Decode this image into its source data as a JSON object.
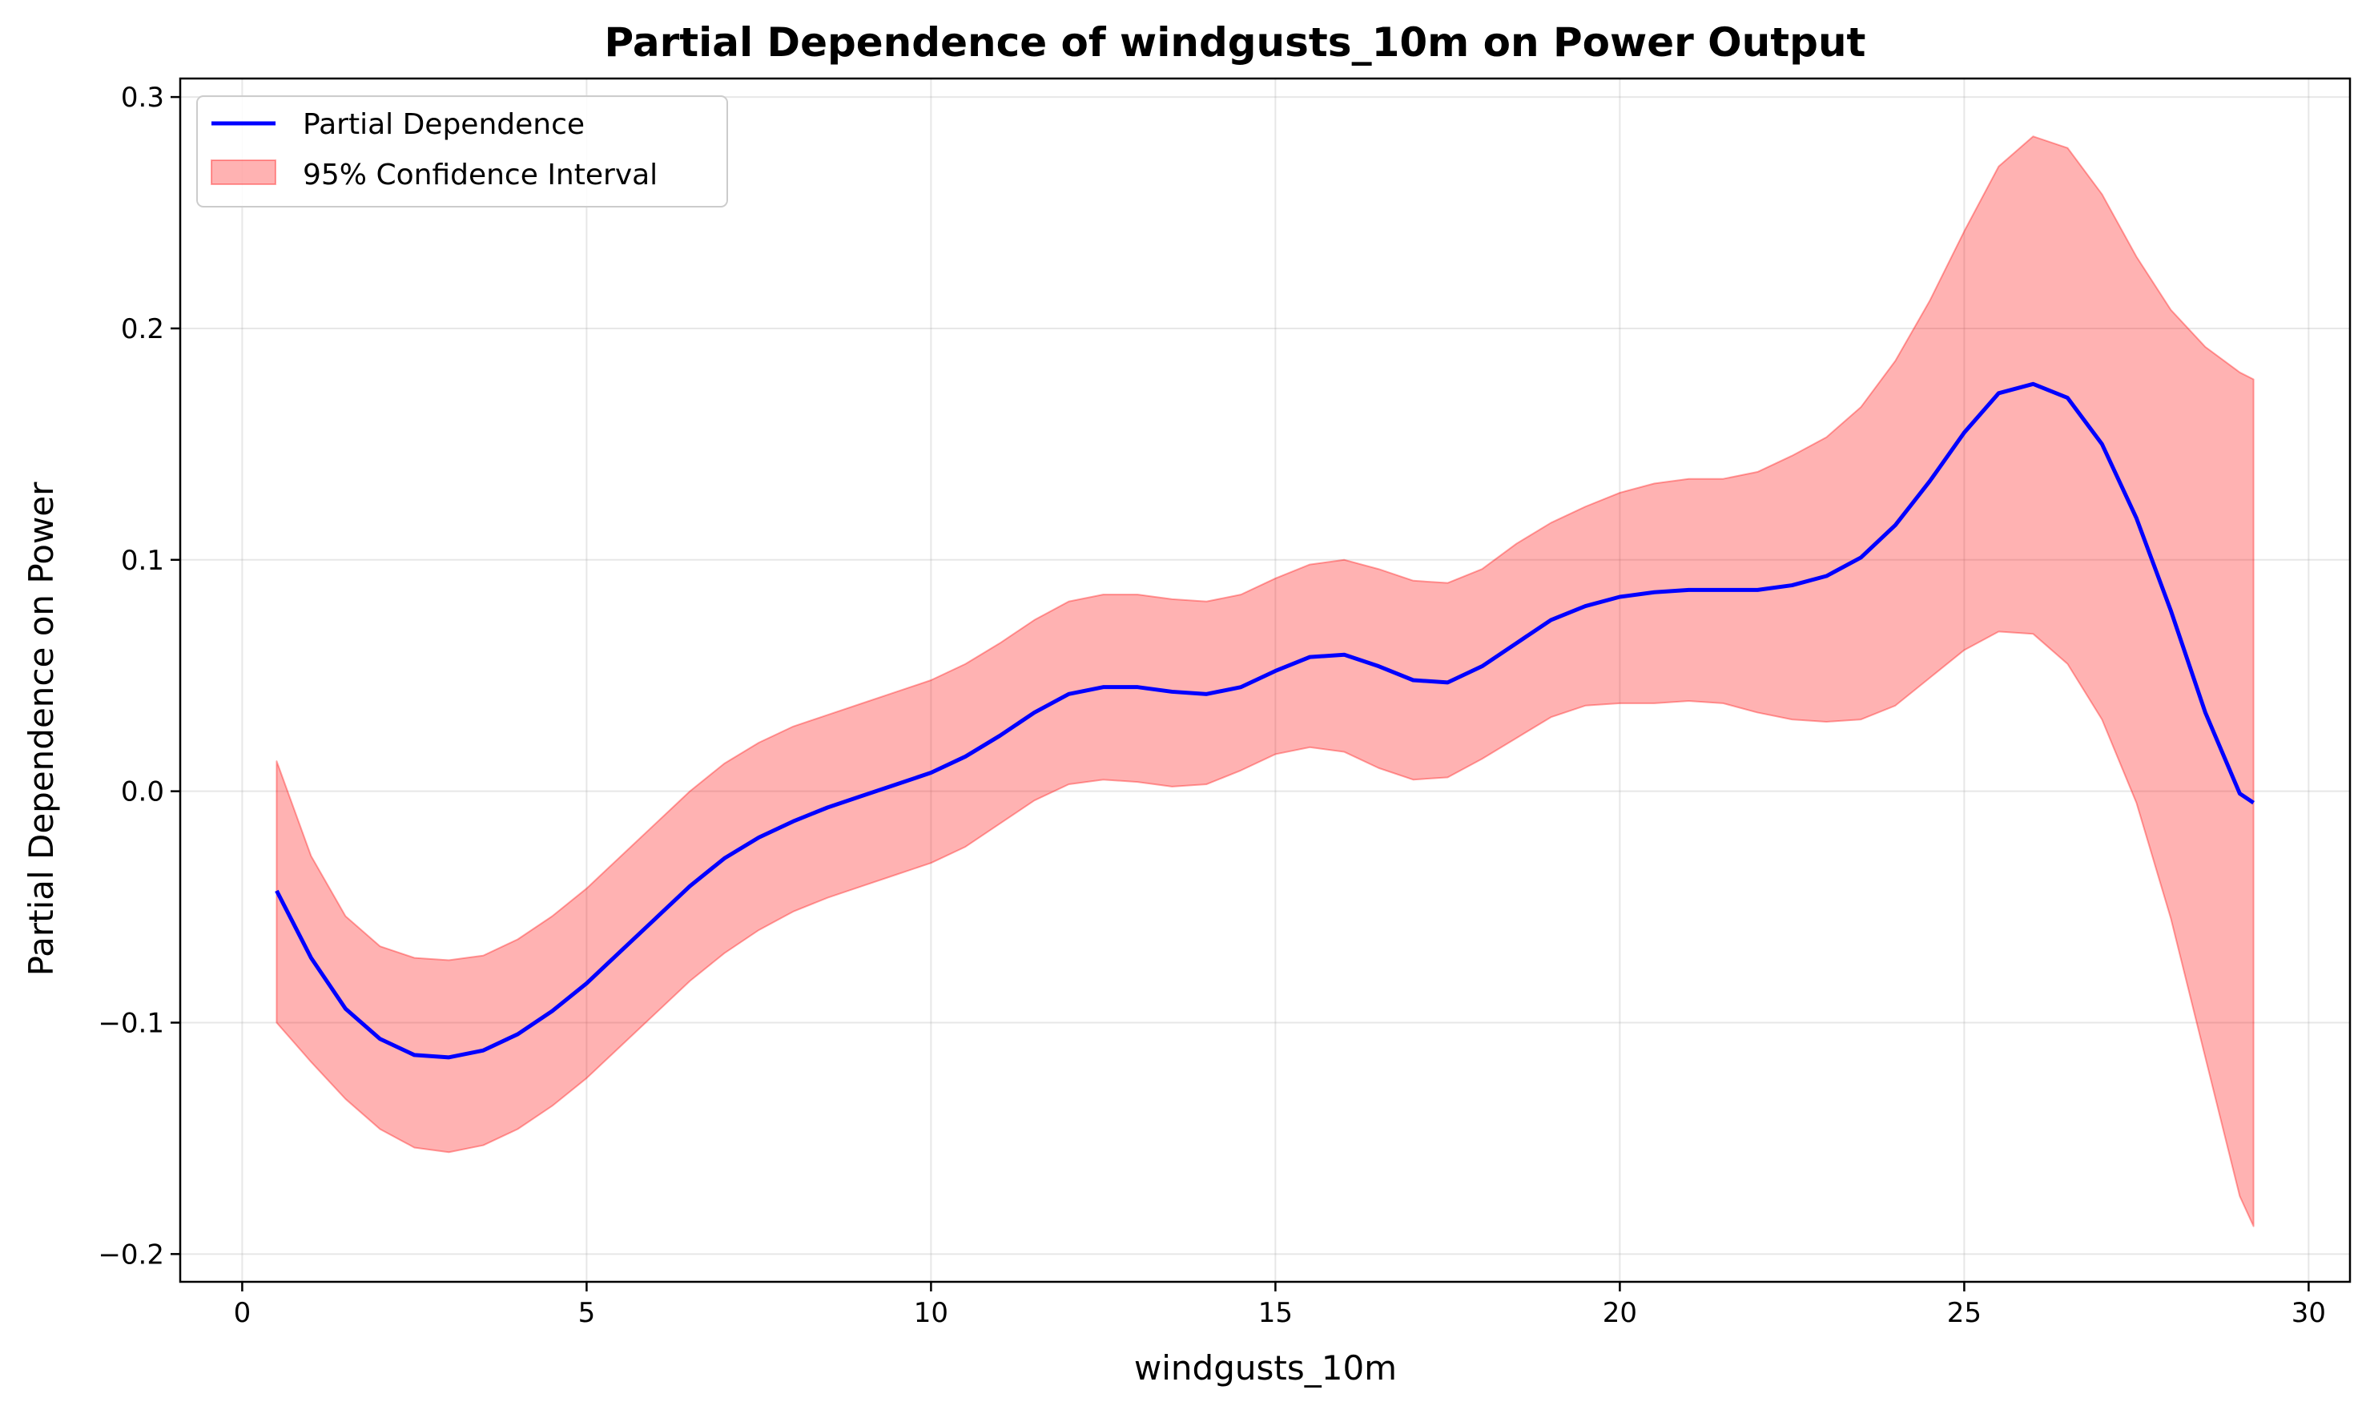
{
  "chart_data": {
    "type": "line",
    "title": "Partial Dependence of windgusts_10m on Power Output",
    "xlabel": "windgusts_10m",
    "ylabel": "Partial Dependence on Power",
    "xlim": [
      -0.9,
      30.6
    ],
    "ylim": [
      -0.212,
      0.308
    ],
    "xticks": [
      0,
      5,
      10,
      15,
      20,
      25,
      30
    ],
    "xtick_labels": [
      "0",
      "5",
      "10",
      "15",
      "20",
      "25",
      "30"
    ],
    "yticks": [
      -0.2,
      -0.1,
      0.0,
      0.1,
      0.2,
      0.3
    ],
    "ytick_labels": [
      "−0.2",
      "−0.1",
      "0.0",
      "0.1",
      "0.2",
      "0.3"
    ],
    "grid": true,
    "legend_position": "top-left",
    "colors": {
      "line": "#0000ff",
      "band": "#ff0000",
      "band_alpha": 0.3
    },
    "series": [
      {
        "name": "Partial Dependence",
        "kind": "line",
        "x": [
          0.5,
          1.0,
          1.5,
          2.0,
          2.5,
          3.0,
          3.5,
          4.0,
          4.5,
          5.0,
          5.5,
          6.0,
          6.5,
          7.0,
          7.5,
          8.0,
          8.5,
          9.0,
          9.5,
          10.0,
          10.5,
          11.0,
          11.5,
          12.0,
          12.5,
          13.0,
          13.5,
          14.0,
          14.5,
          15.0,
          15.5,
          16.0,
          16.5,
          17.0,
          17.5,
          18.0,
          18.5,
          19.0,
          19.5,
          20.0,
          20.5,
          21.0,
          21.5,
          22.0,
          22.5,
          23.0,
          23.5,
          24.0,
          24.5,
          25.0,
          25.5,
          26.0,
          26.5,
          27.0,
          27.5,
          28.0,
          28.5,
          29.0,
          29.2
        ],
        "y": [
          -0.043,
          -0.072,
          -0.094,
          -0.107,
          -0.114,
          -0.115,
          -0.112,
          -0.105,
          -0.095,
          -0.083,
          -0.069,
          -0.055,
          -0.041,
          -0.029,
          -0.02,
          -0.013,
          -0.007,
          -0.002,
          0.003,
          0.008,
          0.015,
          0.024,
          0.034,
          0.042,
          0.045,
          0.045,
          0.043,
          0.042,
          0.045,
          0.052,
          0.058,
          0.059,
          0.054,
          0.048,
          0.047,
          0.054,
          0.064,
          0.074,
          0.08,
          0.084,
          0.086,
          0.087,
          0.087,
          0.087,
          0.089,
          0.093,
          0.101,
          0.115,
          0.134,
          0.155,
          0.172,
          0.176,
          0.17,
          0.15,
          0.118,
          0.078,
          0.034,
          -0.001,
          -0.005
        ]
      },
      {
        "name": "95% Confidence Interval",
        "kind": "band",
        "x": [
          0.5,
          1.0,
          1.5,
          2.0,
          2.5,
          3.0,
          3.5,
          4.0,
          4.5,
          5.0,
          5.5,
          6.0,
          6.5,
          7.0,
          7.5,
          8.0,
          8.5,
          9.0,
          9.5,
          10.0,
          10.5,
          11.0,
          11.5,
          12.0,
          12.5,
          13.0,
          13.5,
          14.0,
          14.5,
          15.0,
          15.5,
          16.0,
          16.5,
          17.0,
          17.5,
          18.0,
          18.5,
          19.0,
          19.5,
          20.0,
          20.5,
          21.0,
          21.5,
          22.0,
          22.5,
          23.0,
          23.5,
          24.0,
          24.5,
          25.0,
          25.5,
          26.0,
          26.5,
          27.0,
          27.5,
          28.0,
          28.5,
          29.0,
          29.2
        ],
        "lower": [
          -0.1,
          -0.117,
          -0.133,
          -0.146,
          -0.154,
          -0.156,
          -0.153,
          -0.146,
          -0.136,
          -0.124,
          -0.11,
          -0.096,
          -0.082,
          -0.07,
          -0.06,
          -0.052,
          -0.046,
          -0.041,
          -0.036,
          -0.031,
          -0.024,
          -0.014,
          -0.004,
          0.003,
          0.005,
          0.004,
          0.002,
          0.003,
          0.009,
          0.016,
          0.019,
          0.017,
          0.01,
          0.005,
          0.006,
          0.014,
          0.023,
          0.032,
          0.037,
          0.038,
          0.038,
          0.039,
          0.038,
          0.034,
          0.031,
          0.03,
          0.031,
          0.037,
          0.049,
          0.061,
          0.069,
          0.068,
          0.055,
          0.031,
          -0.005,
          -0.055,
          -0.115,
          -0.175,
          -0.188
        ],
        "upper": [
          0.013,
          -0.028,
          -0.054,
          -0.067,
          -0.072,
          -0.073,
          -0.071,
          -0.064,
          -0.054,
          -0.042,
          -0.028,
          -0.014,
          0.0,
          0.012,
          0.021,
          0.028,
          0.033,
          0.038,
          0.043,
          0.048,
          0.055,
          0.064,
          0.074,
          0.082,
          0.085,
          0.085,
          0.083,
          0.082,
          0.085,
          0.092,
          0.098,
          0.1,
          0.096,
          0.091,
          0.09,
          0.096,
          0.107,
          0.116,
          0.123,
          0.129,
          0.133,
          0.135,
          0.135,
          0.138,
          0.145,
          0.153,
          0.166,
          0.186,
          0.212,
          0.242,
          0.27,
          0.283,
          0.278,
          0.258,
          0.231,
          0.208,
          0.192,
          0.181,
          0.178
        ]
      }
    ]
  }
}
